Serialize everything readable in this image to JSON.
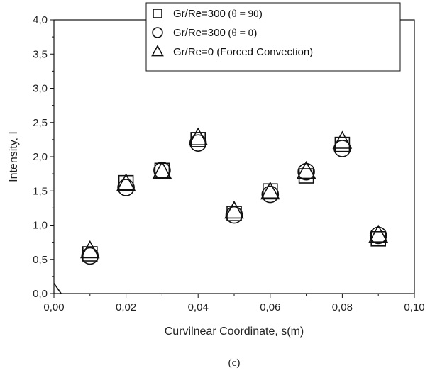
{
  "caption": "(c)",
  "chart_data": {
    "type": "scatter",
    "xlabel": "Curvilnear Coordinate, s(m)",
    "ylabel": "Intensity, I",
    "xlim": [
      0.0,
      0.1
    ],
    "ylim": [
      0.0,
      4.0
    ],
    "x_ticks": [
      "0,00",
      "0,02",
      "0,04",
      "0,06",
      "0,08",
      "0,10"
    ],
    "y_ticks": [
      "0,0",
      "0,5",
      "1,0",
      "1,5",
      "2,0",
      "2,5",
      "3,0",
      "3,5",
      "4,0"
    ],
    "legend_placement": "top-right",
    "series": [
      {
        "name": "Gr/Re=300",
        "name_suffix": "(θ = 90)",
        "marker": "square",
        "x": [
          0.01,
          0.02,
          0.03,
          0.04,
          0.05,
          0.06,
          0.07,
          0.08,
          0.09
        ],
        "y": [
          0.58,
          1.62,
          1.8,
          2.25,
          1.17,
          1.5,
          1.72,
          2.18,
          0.8
        ]
      },
      {
        "name": "Gr/Re=300",
        "name_suffix": "(θ = 0)",
        "marker": "circle",
        "x": [
          0.01,
          0.02,
          0.03,
          0.04,
          0.05,
          0.06,
          0.07,
          0.08,
          0.09
        ],
        "y": [
          0.55,
          1.55,
          1.8,
          2.2,
          1.15,
          1.45,
          1.78,
          2.12,
          0.85
        ]
      },
      {
        "name": "Gr/Re=0 (Forced Convection)",
        "name_suffix": "",
        "marker": "triangle",
        "x": [
          0.01,
          0.02,
          0.03,
          0.04,
          0.05,
          0.06,
          0.07,
          0.08,
          0.09
        ],
        "y": [
          0.62,
          1.6,
          1.78,
          2.27,
          1.2,
          1.48,
          1.78,
          2.22,
          0.85
        ]
      }
    ],
    "edge_line": {
      "x": [
        0.0,
        0.002
      ],
      "y": [
        0.15,
        0.0
      ]
    }
  }
}
